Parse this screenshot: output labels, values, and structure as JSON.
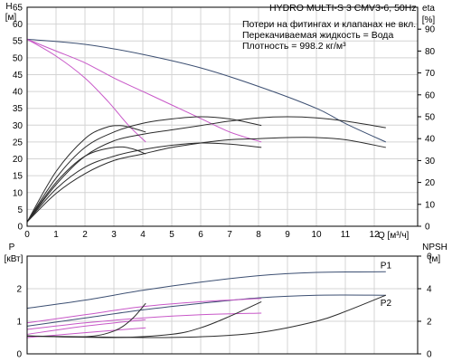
{
  "header": {
    "title": "HYDRO MULTI-S 3 CMV3-6, 50Hz",
    "notes": [
      "Потери на фитингах и клапанах не вкл.",
      "Перекачиваемая жидкость = Вода",
      "Плотность = 998.2 кг/м³"
    ]
  },
  "chart_data": [
    {
      "type": "line",
      "title": "HYDRO MULTI-S 3 CMV3-6, 50Hz",
      "xlabel": "Q [м³/ч]",
      "x_ticks": [
        "0",
        "1",
        "2",
        "3",
        "4",
        "5",
        "6",
        "7",
        "8",
        "9",
        "10",
        "11",
        "12"
      ],
      "xlim": [
        0,
        13.5
      ],
      "ylabel_left": "H [м]",
      "ylabel_left_title": "H",
      "ylabel_left_unit": "[м]",
      "ylim_left": [
        0,
        65
      ],
      "y_left_ticks": [
        "0",
        "5",
        "10",
        "15",
        "20",
        "25",
        "30",
        "35",
        "40",
        "45",
        "50",
        "55",
        "60",
        "65"
      ],
      "ylabel_right": "eta [%]",
      "ylabel_right_title": "eta",
      "ylabel_right_unit": "[%]",
      "ylim_right": [
        0,
        100
      ],
      "y_right_ticks": [
        "0",
        "10",
        "20",
        "30",
        "40",
        "50",
        "60",
        "70",
        "80",
        "90"
      ],
      "grid": true,
      "series": [
        {
          "color": "#3c4f72",
          "axis": "left",
          "points": [
            [
              0,
              55.5
            ],
            [
              2,
              54
            ],
            [
              4,
              51
            ],
            [
              6,
              47
            ],
            [
              8,
              41.5
            ],
            [
              10,
              35
            ],
            [
              11,
              30.5
            ],
            [
              12.4,
              25
            ]
          ]
        },
        {
          "color": "#c858c8",
          "axis": "left",
          "points": [
            [
              0,
              55.5
            ],
            [
              1,
              52
            ],
            [
              2,
              48.5
            ],
            [
              3,
              44
            ],
            [
              4,
              40
            ],
            [
              5,
              36
            ],
            [
              6,
              32
            ],
            [
              7,
              28
            ],
            [
              8.1,
              25
            ]
          ]
        },
        {
          "color": "#c858c8",
          "axis": "left",
          "points": [
            [
              0,
              55.5
            ],
            [
              1,
              50.5
            ],
            [
              2,
              44
            ],
            [
              2.8,
              37
            ],
            [
              3.5,
              30
            ],
            [
              4.1,
              25
            ]
          ]
        },
        {
          "color": "#2b2b2b",
          "axis": "right",
          "points": [
            [
              0,
              2
            ],
            [
              1,
              19
            ],
            [
              2,
              32
            ],
            [
              3,
              39
            ],
            [
              4,
              42
            ],
            [
              5,
              44
            ],
            [
              6,
              46
            ],
            [
              7,
              48
            ],
            [
              8,
              49.5
            ],
            [
              9,
              50
            ],
            [
              10,
              49.5
            ],
            [
              11,
              48
            ],
            [
              12.4,
              45
            ]
          ]
        },
        {
          "color": "#2b2b2b",
          "axis": "right",
          "points": [
            [
              0,
              2
            ],
            [
              1,
              15
            ],
            [
              2,
              24
            ],
            [
              3,
              30
            ],
            [
              4,
              33
            ],
            [
              5,
              36
            ],
            [
              6,
              38
            ],
            [
              7,
              39.5
            ],
            [
              8,
              40
            ],
            [
              9,
              40.5
            ],
            [
              10,
              40.5
            ],
            [
              11,
              39.5
            ],
            [
              12.4,
              36
            ]
          ]
        },
        {
          "color": "#2b2b2b",
          "axis": "right",
          "points": [
            [
              0,
              2
            ],
            [
              1,
              22
            ],
            [
              2,
              36
            ],
            [
              3,
              43
            ],
            [
              4,
              47
            ],
            [
              5,
              49
            ],
            [
              6,
              50
            ],
            [
              7,
              49
            ],
            [
              8.1,
              46
            ]
          ]
        },
        {
          "color": "#2b2b2b",
          "axis": "right",
          "points": [
            [
              0,
              2
            ],
            [
              1,
              17
            ],
            [
              2,
              27
            ],
            [
              3,
              32
            ],
            [
              4,
              35
            ],
            [
              5,
              37
            ],
            [
              6,
              38
            ],
            [
              7,
              37.5
            ],
            [
              8.1,
              36
            ]
          ]
        },
        {
          "color": "#2b2b2b",
          "axis": "right",
          "points": [
            [
              0,
              2
            ],
            [
              1,
              25
            ],
            [
              2,
              40
            ],
            [
              2.7,
              45
            ],
            [
              3.2,
              46
            ],
            [
              3.6,
              45
            ],
            [
              4.1,
              43
            ]
          ]
        },
        {
          "color": "#2b2b2b",
          "axis": "right",
          "points": [
            [
              0,
              2
            ],
            [
              1,
              20
            ],
            [
              2,
              32
            ],
            [
              3,
              36
            ],
            [
              3.6,
              35.5
            ],
            [
              4.1,
              33
            ]
          ]
        }
      ]
    },
    {
      "type": "line",
      "xlim": [
        0,
        13.5
      ],
      "ylabel_left": "P [кВт]",
      "ylabel_left_title": "P",
      "ylabel_left_unit": "[кВт]",
      "ylim_left": [
        0,
        3
      ],
      "y_left_ticks": [
        "0",
        "1",
        "2"
      ],
      "ylabel_right": "NPSH [м]",
      "ylabel_right_title": "NPSH",
      "ylabel_right_unit": "[м]",
      "ylim_right": [
        0,
        6
      ],
      "y_right_ticks": [
        "0",
        "2",
        "4",
        "6"
      ],
      "grid": true,
      "series": [
        {
          "name": "P1",
          "color": "#3c4f72",
          "axis": "left",
          "points": [
            [
              0,
              1.4
            ],
            [
              2,
              1.65
            ],
            [
              4,
              1.95
            ],
            [
              6,
              2.2
            ],
            [
              8,
              2.4
            ],
            [
              10,
              2.5
            ],
            [
              12.4,
              2.52
            ]
          ]
        },
        {
          "name": "P2",
          "color": "#3c4f72",
          "axis": "left",
          "points": [
            [
              0,
              0.85
            ],
            [
              2,
              1.1
            ],
            [
              4,
              1.35
            ],
            [
              6,
              1.55
            ],
            [
              8,
              1.72
            ],
            [
              10,
              1.8
            ],
            [
              12.4,
              1.8
            ]
          ]
        },
        {
          "color": "#c858c8",
          "axis": "left",
          "points": [
            [
              0,
              0.95
            ],
            [
              2,
              1.2
            ],
            [
              4,
              1.45
            ],
            [
              6,
              1.6
            ],
            [
              8.1,
              1.7
            ]
          ]
        },
        {
          "color": "#c858c8",
          "axis": "left",
          "points": [
            [
              0,
              0.75
            ],
            [
              2,
              0.95
            ],
            [
              4,
              1.1
            ],
            [
              6,
              1.2
            ],
            [
              8.1,
              1.25
            ]
          ]
        },
        {
          "color": "#c858c8",
          "axis": "left",
          "points": [
            [
              0,
              0.6
            ],
            [
              2,
              0.85
            ],
            [
              4.1,
              1.05
            ]
          ]
        },
        {
          "color": "#c858c8",
          "axis": "left",
          "points": [
            [
              0,
              0.5
            ],
            [
              2,
              0.65
            ],
            [
              4.1,
              0.8
            ]
          ]
        },
        {
          "color": "#2b2b2b",
          "axis": "right",
          "points": [
            [
              0,
              1.1
            ],
            [
              4,
              1.0
            ],
            [
              6,
              1.05
            ],
            [
              8,
              1.3
            ],
            [
              10,
              2
            ],
            [
              11,
              2.6
            ],
            [
              12.4,
              3.6
            ]
          ]
        },
        {
          "color": "#2b2b2b",
          "axis": "right",
          "points": [
            [
              0,
              1.1
            ],
            [
              3,
              1.0
            ],
            [
              5,
              1.2
            ],
            [
              6,
              1.6
            ],
            [
              7,
              2.3
            ],
            [
              8.1,
              3.2
            ]
          ]
        },
        {
          "color": "#2b2b2b",
          "axis": "right",
          "points": [
            [
              0,
              1.1
            ],
            [
              2,
              1.05
            ],
            [
              3,
              1.4
            ],
            [
              3.6,
              2.1
            ],
            [
              4.1,
              3.1
            ]
          ]
        }
      ]
    }
  ]
}
